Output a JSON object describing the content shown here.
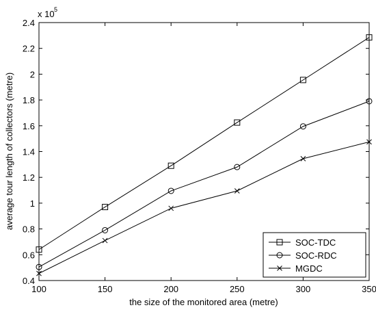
{
  "chart_data": {
    "type": "line",
    "xlabel": "the size of the monitored area (metre)",
    "ylabel": "average tour length of collectors (metre)",
    "y_exponent_label": "x 10",
    "y_exponent_power": "5",
    "x": [
      100,
      150,
      200,
      250,
      300,
      350
    ],
    "xlim": [
      100,
      350
    ],
    "ylim": [
      0.4,
      2.4
    ],
    "xticks": [
      100,
      150,
      200,
      250,
      300,
      350
    ],
    "yticks": [
      0.4,
      0.6,
      0.8,
      1,
      1.2,
      1.4,
      1.6,
      1.8,
      2,
      2.2,
      2.4
    ],
    "xtick_labels": [
      "100",
      "150",
      "200",
      "250",
      "300",
      "350"
    ],
    "ytick_labels": [
      "0.4",
      "0.6",
      "0.8",
      "1",
      "1.2",
      "1.4",
      "1.6",
      "1.8",
      "2",
      "2.2",
      "2.4"
    ],
    "grid": false,
    "legend_position": "bottom-right",
    "series": [
      {
        "name": "SOC-TDC",
        "marker": "square",
        "values": [
          0.64,
          0.97,
          1.29,
          1.625,
          1.955,
          2.285
        ]
      },
      {
        "name": "SOC-RDC",
        "marker": "circle",
        "values": [
          0.505,
          0.79,
          1.095,
          1.28,
          1.595,
          1.79
        ]
      },
      {
        "name": "MGDC",
        "marker": "x",
        "values": [
          0.455,
          0.71,
          0.96,
          1.095,
          1.345,
          1.475
        ]
      }
    ],
    "line_color": "#000000"
  }
}
